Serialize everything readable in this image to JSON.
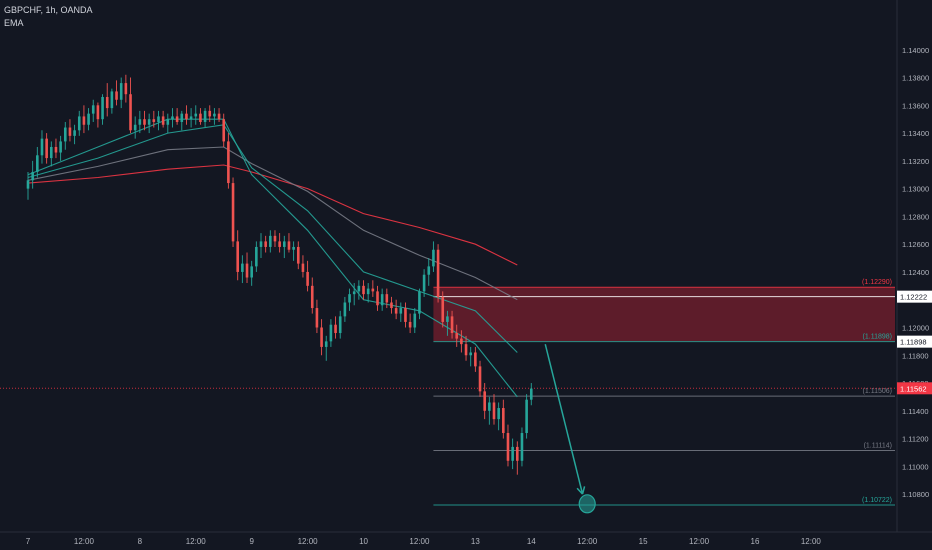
{
  "header": {
    "symbol": "GBPCHF, 1h, OANDA",
    "indicator": "EMA"
  },
  "chart_data": {
    "type": "candlestick",
    "y_axis": {
      "min": 1.107,
      "max": 1.142,
      "ticks": [
        "1.14000",
        "1.13800",
        "1.13600",
        "1.13400",
        "1.13200",
        "1.13000",
        "1.12800",
        "1.12600",
        "1.12400",
        "1.12200",
        "1.12000",
        "1.11800",
        "1.11600",
        "1.11400",
        "1.11200",
        "1.11000",
        "1.10800"
      ]
    },
    "x_axis": {
      "labels": [
        {
          "t": 0,
          "text": "7"
        },
        {
          "t": 12,
          "text": "12:00"
        },
        {
          "t": 24,
          "text": "8"
        },
        {
          "t": 36,
          "text": "12:00"
        },
        {
          "t": 48,
          "text": "9"
        },
        {
          "t": 60,
          "text": "12:00"
        },
        {
          "t": 72,
          "text": "10"
        },
        {
          "t": 84,
          "text": "12:00"
        },
        {
          "t": 96,
          "text": "13"
        },
        {
          "t": 108,
          "text": "14"
        },
        {
          "t": 120,
          "text": "12:00"
        },
        {
          "t": 132,
          "text": "15"
        },
        {
          "t": 144,
          "text": "12:00"
        },
        {
          "t": 156,
          "text": "16"
        },
        {
          "t": 168,
          "text": "12:00"
        }
      ]
    },
    "candles": [
      [
        1.13,
        1.1312,
        1.1292,
        1.1306
      ],
      [
        1.1306,
        1.132,
        1.13,
        1.1312
      ],
      [
        1.1312,
        1.133,
        1.1308,
        1.1324
      ],
      [
        1.1324,
        1.1342,
        1.1318,
        1.1336
      ],
      [
        1.1336,
        1.134,
        1.1318,
        1.1322
      ],
      [
        1.1322,
        1.1334,
        1.1316,
        1.133
      ],
      [
        1.133,
        1.1336,
        1.1322,
        1.1326
      ],
      [
        1.1326,
        1.1338,
        1.132,
        1.1334
      ],
      [
        1.1334,
        1.1348,
        1.1328,
        1.1344
      ],
      [
        1.1344,
        1.135,
        1.1334,
        1.1338
      ],
      [
        1.1338,
        1.1346,
        1.1332,
        1.1342
      ],
      [
        1.1342,
        1.1356,
        1.1338,
        1.1352
      ],
      [
        1.1352,
        1.136,
        1.134,
        1.1346
      ],
      [
        1.1346,
        1.1358,
        1.1342,
        1.1354
      ],
      [
        1.1354,
        1.1364,
        1.1348,
        1.136
      ],
      [
        1.136,
        1.1362,
        1.1344,
        1.135
      ],
      [
        1.135,
        1.1368,
        1.1346,
        1.1366
      ],
      [
        1.1366,
        1.1376,
        1.1352,
        1.1358
      ],
      [
        1.1358,
        1.1372,
        1.1354,
        1.137
      ],
      [
        1.137,
        1.1378,
        1.136,
        1.1364
      ],
      [
        1.1364,
        1.138,
        1.1358,
        1.1376
      ],
      [
        1.1376,
        1.1382,
        1.1362,
        1.1368
      ],
      [
        1.1368,
        1.138,
        1.134,
        1.1342
      ],
      [
        1.1342,
        1.1352,
        1.1336,
        1.1346
      ],
      [
        1.1346,
        1.1356,
        1.134,
        1.135
      ],
      [
        1.135,
        1.1356,
        1.1342,
        1.1346
      ],
      [
        1.1346,
        1.1354,
        1.134,
        1.135
      ],
      [
        1.135,
        1.1356,
        1.1344,
        1.1348
      ],
      [
        1.1348,
        1.1356,
        1.1342,
        1.1352
      ],
      [
        1.1352,
        1.1356,
        1.1344,
        1.1346
      ],
      [
        1.1346,
        1.1354,
        1.134,
        1.135
      ],
      [
        1.135,
        1.1358,
        1.1344,
        1.1352
      ],
      [
        1.1352,
        1.1358,
        1.1346,
        1.1348
      ],
      [
        1.1348,
        1.1356,
        1.1342,
        1.1354
      ],
      [
        1.1354,
        1.136,
        1.1346,
        1.135
      ],
      [
        1.135,
        1.1358,
        1.1344,
        1.1352
      ],
      [
        1.1352,
        1.136,
        1.1346,
        1.1354
      ],
      [
        1.1354,
        1.1358,
        1.1346,
        1.1348
      ],
      [
        1.1348,
        1.1358,
        1.1344,
        1.1356
      ],
      [
        1.1356,
        1.136,
        1.1348,
        1.1352
      ],
      [
        1.1352,
        1.1358,
        1.1346,
        1.1354
      ],
      [
        1.1354,
        1.1358,
        1.1348,
        1.135
      ],
      [
        1.135,
        1.1354,
        1.133,
        1.1334
      ],
      [
        1.1334,
        1.134,
        1.13,
        1.1304
      ],
      [
        1.1304,
        1.1308,
        1.1258,
        1.1262
      ],
      [
        1.1262,
        1.127,
        1.1234,
        1.124
      ],
      [
        1.124,
        1.1252,
        1.1232,
        1.1246
      ],
      [
        1.1246,
        1.1254,
        1.1232,
        1.1236
      ],
      [
        1.1236,
        1.1248,
        1.123,
        1.1244
      ],
      [
        1.1244,
        1.1262,
        1.124,
        1.1258
      ],
      [
        1.1258,
        1.1268,
        1.125,
        1.1262
      ],
      [
        1.1262,
        1.1266,
        1.1254,
        1.1258
      ],
      [
        1.1258,
        1.127,
        1.1254,
        1.1266
      ],
      [
        1.1266,
        1.127,
        1.1258,
        1.1262
      ],
      [
        1.1262,
        1.1268,
        1.1254,
        1.1258
      ],
      [
        1.1258,
        1.1266,
        1.125,
        1.1262
      ],
      [
        1.1262,
        1.1268,
        1.1254,
        1.1256
      ],
      [
        1.1256,
        1.1262,
        1.1248,
        1.1258
      ],
      [
        1.1258,
        1.1262,
        1.1242,
        1.1246
      ],
      [
        1.1246,
        1.1252,
        1.1236,
        1.124
      ],
      [
        1.124,
        1.1248,
        1.1226,
        1.123
      ],
      [
        1.123,
        1.1236,
        1.121,
        1.1214
      ],
      [
        1.1214,
        1.122,
        1.1196,
        1.12
      ],
      [
        1.12,
        1.1206,
        1.118,
        1.1186
      ],
      [
        1.1186,
        1.1194,
        1.1176,
        1.119
      ],
      [
        1.119,
        1.1206,
        1.1186,
        1.1202
      ],
      [
        1.1202,
        1.1208,
        1.1192,
        1.1196
      ],
      [
        1.1196,
        1.1212,
        1.1192,
        1.1208
      ],
      [
        1.1208,
        1.1222,
        1.1204,
        1.1218
      ],
      [
        1.1218,
        1.1228,
        1.1212,
        1.1224
      ],
      [
        1.1224,
        1.1232,
        1.1216,
        1.1226
      ],
      [
        1.1226,
        1.1234,
        1.122,
        1.123
      ],
      [
        1.123,
        1.1234,
        1.122,
        1.1224
      ],
      [
        1.1224,
        1.1232,
        1.1218,
        1.1228
      ],
      [
        1.1228,
        1.1234,
        1.1222,
        1.1226
      ],
      [
        1.1226,
        1.123,
        1.1212,
        1.1216
      ],
      [
        1.1216,
        1.1228,
        1.1212,
        1.1224
      ],
      [
        1.1224,
        1.1228,
        1.1214,
        1.1218
      ],
      [
        1.1218,
        1.1222,
        1.121,
        1.1214
      ],
      [
        1.1214,
        1.122,
        1.1206,
        1.121
      ],
      [
        1.121,
        1.1218,
        1.1204,
        1.1214
      ],
      [
        1.1214,
        1.1218,
        1.12,
        1.1204
      ],
      [
        1.1204,
        1.121,
        1.1196,
        1.12
      ],
      [
        1.12,
        1.1214,
        1.1196,
        1.121
      ],
      [
        1.121,
        1.1228,
        1.1206,
        1.1226
      ],
      [
        1.1226,
        1.1242,
        1.1222,
        1.1238
      ],
      [
        1.1238,
        1.125,
        1.123,
        1.1244
      ],
      [
        1.1244,
        1.1262,
        1.124,
        1.1256
      ],
      [
        1.1256,
        1.126,
        1.1218,
        1.1222
      ],
      [
        1.1222,
        1.1226,
        1.12,
        1.1204
      ],
      [
        1.1204,
        1.1212,
        1.1194,
        1.1208
      ],
      [
        1.1208,
        1.1212,
        1.1192,
        1.1196
      ],
      [
        1.1196,
        1.1202,
        1.1186,
        1.1192
      ],
      [
        1.1192,
        1.1198,
        1.1182,
        1.1188
      ],
      [
        1.1188,
        1.1194,
        1.1176,
        1.118
      ],
      [
        1.118,
        1.1186,
        1.1172,
        1.1182
      ],
      [
        1.1182,
        1.1186,
        1.1168,
        1.1172
      ],
      [
        1.1172,
        1.1176,
        1.115,
        1.1154
      ],
      [
        1.1154,
        1.116,
        1.1134,
        1.114
      ],
      [
        1.114,
        1.115,
        1.113,
        1.1146
      ],
      [
        1.1146,
        1.1152,
        1.113,
        1.1134
      ],
      [
        1.1134,
        1.1146,
        1.1126,
        1.1142
      ],
      [
        1.1142,
        1.1148,
        1.112,
        1.1124
      ],
      [
        1.1124,
        1.113,
        1.11,
        1.1104
      ],
      [
        1.1104,
        1.112,
        1.1098,
        1.1114
      ],
      [
        1.1114,
        1.1118,
        1.1094,
        1.1104
      ],
      [
        1.1104,
        1.1128,
        1.11,
        1.1124
      ],
      [
        1.1124,
        1.1152,
        1.112,
        1.1148
      ],
      [
        1.1148,
        1.116,
        1.1144,
        1.1156
      ]
    ],
    "ema_lines": [
      {
        "color": "#f23645",
        "points": [
          [
            0,
            1.1304
          ],
          [
            15,
            1.1308
          ],
          [
            30,
            1.1314
          ],
          [
            42,
            1.1317
          ],
          [
            48,
            1.1312
          ],
          [
            60,
            1.13
          ],
          [
            72,
            1.1282
          ],
          [
            84,
            1.1272
          ],
          [
            96,
            1.126
          ],
          [
            105,
            1.1245
          ]
        ]
      },
      {
        "color": "#787b86",
        "points": [
          [
            0,
            1.1306
          ],
          [
            15,
            1.1316
          ],
          [
            30,
            1.1328
          ],
          [
            42,
            1.133
          ],
          [
            48,
            1.1318
          ],
          [
            60,
            1.1298
          ],
          [
            72,
            1.127
          ],
          [
            84,
            1.1252
          ],
          [
            96,
            1.1236
          ],
          [
            105,
            1.122
          ]
        ]
      },
      {
        "color": "#26a69a",
        "points": [
          [
            0,
            1.1308
          ],
          [
            15,
            1.1322
          ],
          [
            30,
            1.134
          ],
          [
            42,
            1.1346
          ],
          [
            48,
            1.1315
          ],
          [
            60,
            1.1284
          ],
          [
            72,
            1.124
          ],
          [
            84,
            1.1226
          ],
          [
            96,
            1.1212
          ],
          [
            105,
            1.1182
          ]
        ]
      },
      {
        "color": "#26a69a",
        "points": [
          [
            0,
            1.131
          ],
          [
            15,
            1.133
          ],
          [
            30,
            1.135
          ],
          [
            42,
            1.135
          ],
          [
            48,
            1.131
          ],
          [
            60,
            1.127
          ],
          [
            72,
            1.122
          ],
          [
            84,
            1.1212
          ],
          [
            96,
            1.1188
          ],
          [
            105,
            1.115
          ]
        ]
      }
    ],
    "zone": {
      "top": 1.1229,
      "bottom": 1.11898,
      "t_start": 87,
      "color": "#7a1f2e"
    },
    "levels": [
      {
        "price": 1.1229,
        "label": "(1.12290)",
        "color": "#f23645",
        "t_start": 87
      },
      {
        "price": 1.12222,
        "label": "",
        "color": "#ffffff",
        "t_start": 87
      },
      {
        "price": 1.11898,
        "label": "(1.11898)",
        "color": "#26a69a",
        "t_start": 87
      },
      {
        "price": 1.11506,
        "label": "(1.11506)",
        "color": "#787b86",
        "t_start": 87
      },
      {
        "price": 1.11114,
        "label": "(1.11114)",
        "color": "#787b86",
        "t_start": 87
      },
      {
        "price": 1.10722,
        "label": "(1.10722)",
        "color": "#26a69a",
        "t_start": 87
      }
    ],
    "current_price": {
      "price": 1.11562,
      "label": "1.11562",
      "color": "#f23645"
    },
    "axis_badges": [
      {
        "price": 1.12222,
        "label": "1.12222",
        "bg": "#ffffff",
        "fg": "#131722"
      },
      {
        "price": 1.11898,
        "label": "1.11898",
        "bg": "#ffffff",
        "fg": "#131722"
      }
    ],
    "projection_arrow": {
      "from": [
        111,
        1.1188
      ],
      "to": [
        119,
        1.108
      ],
      "color": "#26a69a"
    },
    "target_marker": {
      "t": 120,
      "price": 1.1073,
      "color": "#26a69a"
    }
  }
}
